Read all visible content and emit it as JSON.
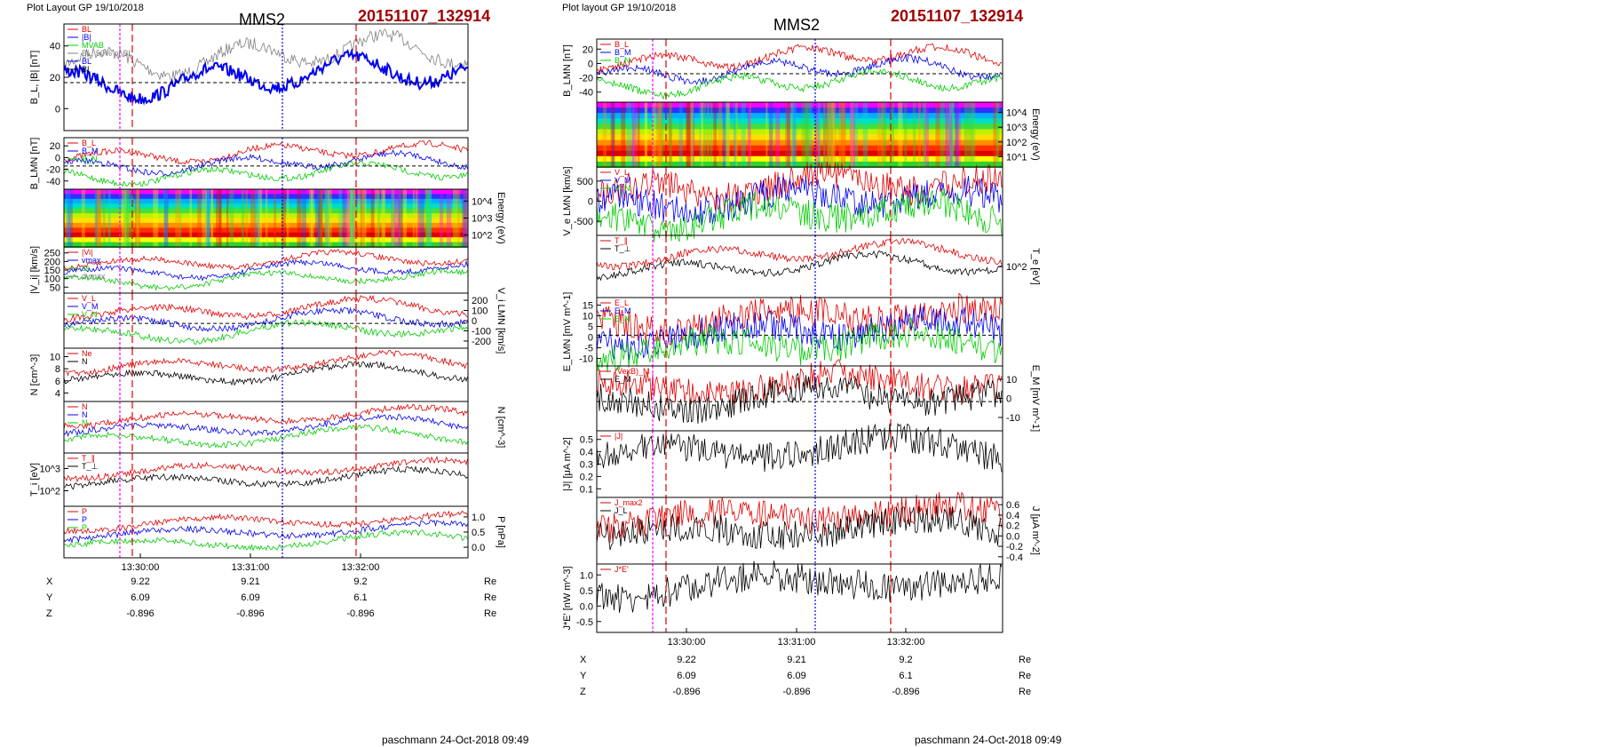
{
  "layout_caption": "Plot Layout GP 19/10/2018",
  "layout_caption_right": "Plot layout GP 19/10/2018",
  "spacecraft": "MMS2",
  "event_id": "20151107_132914",
  "footer_left": "paschmann 24-Oct-2018 09:49",
  "footer_right": "paschmann 24-Oct-2018 09:49",
  "colors": {
    "event_id": "#a00000",
    "red": "#e00000",
    "blue": "#0000ee",
    "green": "#00cc00",
    "magenta": "#ff00ff",
    "gray": "#808080",
    "black": "#000000"
  },
  "chart_data": [
    {
      "type": "line",
      "title": "MMS2",
      "time_ticks": [
        "13:30:00",
        "13:31:00",
        "13:32:00"
      ],
      "ephemeris": {
        "rows": [
          {
            "label": "X",
            "values": [
              "9.22",
              "9.21",
              "9.2"
            ],
            "unit": "Re"
          },
          {
            "label": "Y",
            "values": [
              "6.09",
              "6.09",
              "6.1"
            ],
            "unit": "Re"
          },
          {
            "label": "Z",
            "values": [
              "-0.896",
              "-0.896",
              "-0.896"
            ],
            "unit": "Re"
          }
        ]
      },
      "panels": [
        {
          "ylabel": "B_L, |B| [nT]",
          "side": "left",
          "ticks": [
            "40",
            "20",
            "0"
          ],
          "legend": [
            "BL",
            "|B|",
            "MVAB",
            "BL: 50% of BL",
            "BL",
            "BI"
          ]
        },
        {
          "ylabel": "B_LMN [nT]",
          "side": "left",
          "ticks": [
            "20",
            "0",
            "-20",
            "-40"
          ],
          "legend": [
            "B_L",
            "B_M",
            "B_N"
          ]
        },
        {
          "ylabel": "Energy (eV)",
          "side": "right",
          "ticks": [
            "10^4",
            "10^3",
            "10^2"
          ],
          "type": "spectrogram"
        },
        {
          "ylabel": "|V_i| [km/s]",
          "side": "left",
          "ticks": [
            "250",
            "200",
            "150",
            "100",
            "50"
          ],
          "legend": [
            "|Vi|",
            "vmax",
            "cs",
            "dvmax"
          ]
        },
        {
          "ylabel": "V_i LMN [km/s]",
          "side": "right",
          "ticks": [
            "200",
            "100",
            "0",
            "-100",
            "-200"
          ],
          "legend": [
            "V_L",
            "V_M",
            "V_N"
          ]
        },
        {
          "ylabel": "N [cm^-3]",
          "side": "left",
          "ticks": [
            "10",
            "8",
            "6",
            "4"
          ],
          "legend": [
            "Ne",
            "N"
          ]
        },
        {
          "ylabel": "N [cm^-3]",
          "side": "right",
          "ticks": [],
          "legend": [
            "N",
            "N",
            "N"
          ]
        },
        {
          "ylabel": "T_i [eV]",
          "side": "left",
          "ticks": [
            "10^3",
            "10^2"
          ],
          "legend": [
            "T_∥",
            "T_⊥"
          ]
        },
        {
          "ylabel": "P [nPa]",
          "side": "right",
          "ticks": [
            "1.0",
            "0.5",
            "0.0"
          ],
          "legend": [
            "P",
            "P",
            "P"
          ]
        }
      ]
    },
    {
      "type": "line",
      "title": "MMS2",
      "time_ticks": [
        "13:30:00",
        "13:31:00",
        "13:32:00"
      ],
      "ephemeris": {
        "rows": [
          {
            "label": "X",
            "values": [
              "9.22",
              "9.21",
              "9.2"
            ],
            "unit": "Re"
          },
          {
            "label": "Y",
            "values": [
              "6.09",
              "6.09",
              "6.1"
            ],
            "unit": "Re"
          },
          {
            "label": "Z",
            "values": [
              "-0.896",
              "-0.896",
              "-0.896"
            ],
            "unit": "Re"
          }
        ]
      },
      "panels": [
        {
          "ylabel": "B_LMN [nT]",
          "side": "left",
          "ticks": [
            "20",
            "0",
            "-20",
            "-40"
          ],
          "legend": [
            "B_L",
            "B_M",
            "B_N"
          ]
        },
        {
          "ylabel": "Energy (eV)",
          "side": "right",
          "ticks": [
            "10^4",
            "10^3",
            "10^2",
            "10^1"
          ],
          "type": "spectrogram"
        },
        {
          "ylabel": "V_e LMN [km/s]",
          "side": "left",
          "ticks": [
            "500",
            "0",
            "-500"
          ],
          "legend": [
            "V_L",
            "V_M",
            "V_N"
          ]
        },
        {
          "ylabel": "T_e [eV]",
          "side": "right",
          "ticks": [
            "10^2"
          ],
          "legend": [
            "T_∥",
            "T_⊥"
          ]
        },
        {
          "ylabel": "E_LMN [mV m^-1]",
          "side": "left",
          "ticks": [
            "15",
            "10",
            "5",
            "0",
            "-5",
            "-10"
          ],
          "legend": [
            "E_L",
            "E_M",
            "E_N"
          ]
        },
        {
          "ylabel": "E_M [mV m^-1]",
          "side": "right",
          "ticks": [
            "10",
            "0",
            "-10"
          ],
          "legend": [
            "(VexB)_M",
            "E_M"
          ]
        },
        {
          "ylabel": "|J| [μA m^-2]",
          "side": "left",
          "ticks": [
            "0.5",
            "0.4",
            "0.3",
            "0.2",
            "0.1"
          ],
          "legend": [
            "|J|"
          ]
        },
        {
          "ylabel": "J [μA m^-2]",
          "side": "right",
          "ticks": [
            "0.6",
            "0.4",
            "0.2",
            "0.0",
            "-0.2",
            "-0.4"
          ],
          "legend": [
            "J_max2",
            "J_L"
          ]
        },
        {
          "ylabel": "J*E' [nW m^-3]",
          "side": "left",
          "ticks": [
            "1.0",
            "0.5",
            "0.0",
            "-0.5"
          ],
          "legend": [
            "J*E'"
          ]
        }
      ]
    }
  ]
}
